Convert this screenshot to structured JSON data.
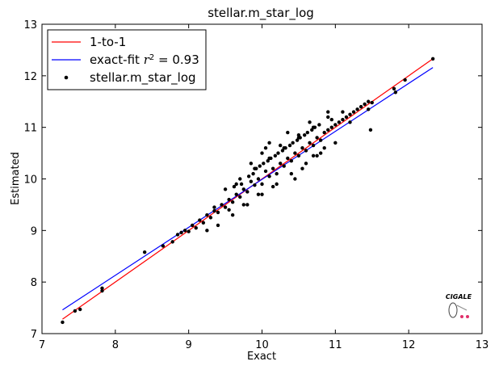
{
  "chart_data": {
    "type": "scatter",
    "title": "stellar.m_star_log",
    "xlabel": "Exact",
    "ylabel": "Estimated",
    "xlim": [
      7,
      13
    ],
    "ylim": [
      7,
      13
    ],
    "xticks": [
      7,
      8,
      9,
      10,
      11,
      12,
      13
    ],
    "yticks": [
      7,
      8,
      9,
      10,
      11,
      12,
      13
    ],
    "grid": false,
    "legend_placement": "top-left",
    "series": [
      {
        "name": "1-to-1",
        "kind": "line",
        "color": "#ff0000",
        "x": [
          7.28,
          12.33
        ],
        "y": [
          7.28,
          12.33
        ]
      },
      {
        "name": "exact-fit",
        "label_suffix": " = 0.93",
        "kind": "line",
        "color": "#0000ff",
        "x": [
          7.28,
          12.33
        ],
        "y": [
          7.46,
          12.16
        ]
      },
      {
        "name": "stellar.m_star_log",
        "kind": "scatter",
        "color": "#000000",
        "x": [
          7.28,
          7.45,
          7.52,
          7.82,
          7.82,
          8.4,
          8.65,
          8.78,
          8.85,
          8.9,
          8.95,
          9.0,
          9.05,
          9.1,
          9.15,
          9.2,
          9.25,
          9.3,
          9.35,
          9.4,
          9.45,
          9.5,
          9.55,
          9.6,
          9.62,
          9.65,
          9.7,
          9.72,
          9.75,
          9.8,
          9.82,
          9.85,
          9.88,
          9.9,
          9.92,
          9.95,
          9.97,
          10.0,
          10.02,
          10.05,
          10.08,
          10.1,
          10.12,
          10.15,
          10.18,
          10.2,
          10.22,
          10.25,
          10.28,
          10.3,
          10.32,
          10.35,
          10.38,
          10.4,
          10.42,
          10.45,
          10.48,
          10.5,
          10.52,
          10.55,
          10.58,
          10.6,
          10.62,
          10.65,
          10.68,
          10.7,
          10.72,
          10.75,
          10.78,
          10.8,
          10.85,
          10.9,
          10.95,
          11.0,
          11.05,
          11.1,
          11.15,
          11.2,
          11.25,
          11.3,
          11.35,
          11.4,
          11.45,
          11.5,
          11.48,
          11.8,
          11.82,
          11.95,
          12.33,
          9.6,
          9.8,
          10.0,
          10.2,
          10.4,
          10.6,
          10.8,
          11.0,
          9.5,
          9.7,
          9.9,
          10.1,
          10.3,
          10.5,
          10.7,
          10.9,
          11.1,
          9.4,
          10.0,
          10.35,
          10.45,
          10.65,
          10.85,
          9.75,
          9.95,
          10.15,
          10.25,
          10.55,
          10.75,
          10.95,
          9.35,
          9.55,
          9.85,
          10.05,
          10.5,
          10.9,
          11.2,
          9.25,
          9.65,
          10.1,
          10.7,
          11.45
        ],
        "y": [
          7.22,
          7.44,
          7.47,
          7.83,
          7.88,
          8.58,
          8.7,
          8.78,
          8.92,
          8.96,
          9.0,
          8.98,
          9.1,
          9.05,
          9.2,
          9.15,
          9.3,
          9.25,
          9.38,
          9.35,
          9.5,
          9.45,
          9.6,
          9.55,
          9.85,
          9.7,
          9.65,
          9.9,
          9.8,
          9.75,
          10.05,
          9.95,
          10.1,
          9.88,
          10.2,
          10.0,
          10.25,
          9.9,
          10.3,
          10.15,
          10.35,
          10.05,
          10.4,
          10.2,
          10.45,
          10.1,
          10.5,
          10.3,
          10.55,
          10.25,
          10.6,
          10.4,
          10.65,
          10.35,
          10.7,
          10.5,
          10.75,
          10.45,
          10.8,
          10.6,
          10.85,
          10.55,
          10.9,
          10.7,
          10.95,
          10.65,
          11.0,
          10.8,
          11.05,
          10.75,
          10.9,
          10.95,
          11.0,
          11.05,
          11.1,
          11.15,
          11.2,
          11.25,
          11.3,
          11.35,
          11.4,
          11.45,
          11.5,
          11.48,
          10.95,
          11.75,
          11.68,
          11.92,
          12.33,
          9.3,
          9.5,
          9.7,
          9.9,
          10.1,
          10.3,
          10.5,
          10.7,
          9.8,
          10.0,
          10.2,
          10.4,
          10.6,
          10.8,
          11.0,
          11.2,
          11.3,
          9.1,
          10.5,
          10.9,
          10.0,
          11.1,
          10.6,
          9.5,
          9.7,
          9.85,
          10.65,
          10.2,
          10.45,
          11.15,
          9.45,
          9.4,
          10.3,
          10.6,
          10.85,
          11.3,
          11.1,
          9.0,
          9.9,
          10.7,
          10.45,
          11.35
        ]
      }
    ]
  },
  "logo": {
    "text": "CIGALE"
  }
}
